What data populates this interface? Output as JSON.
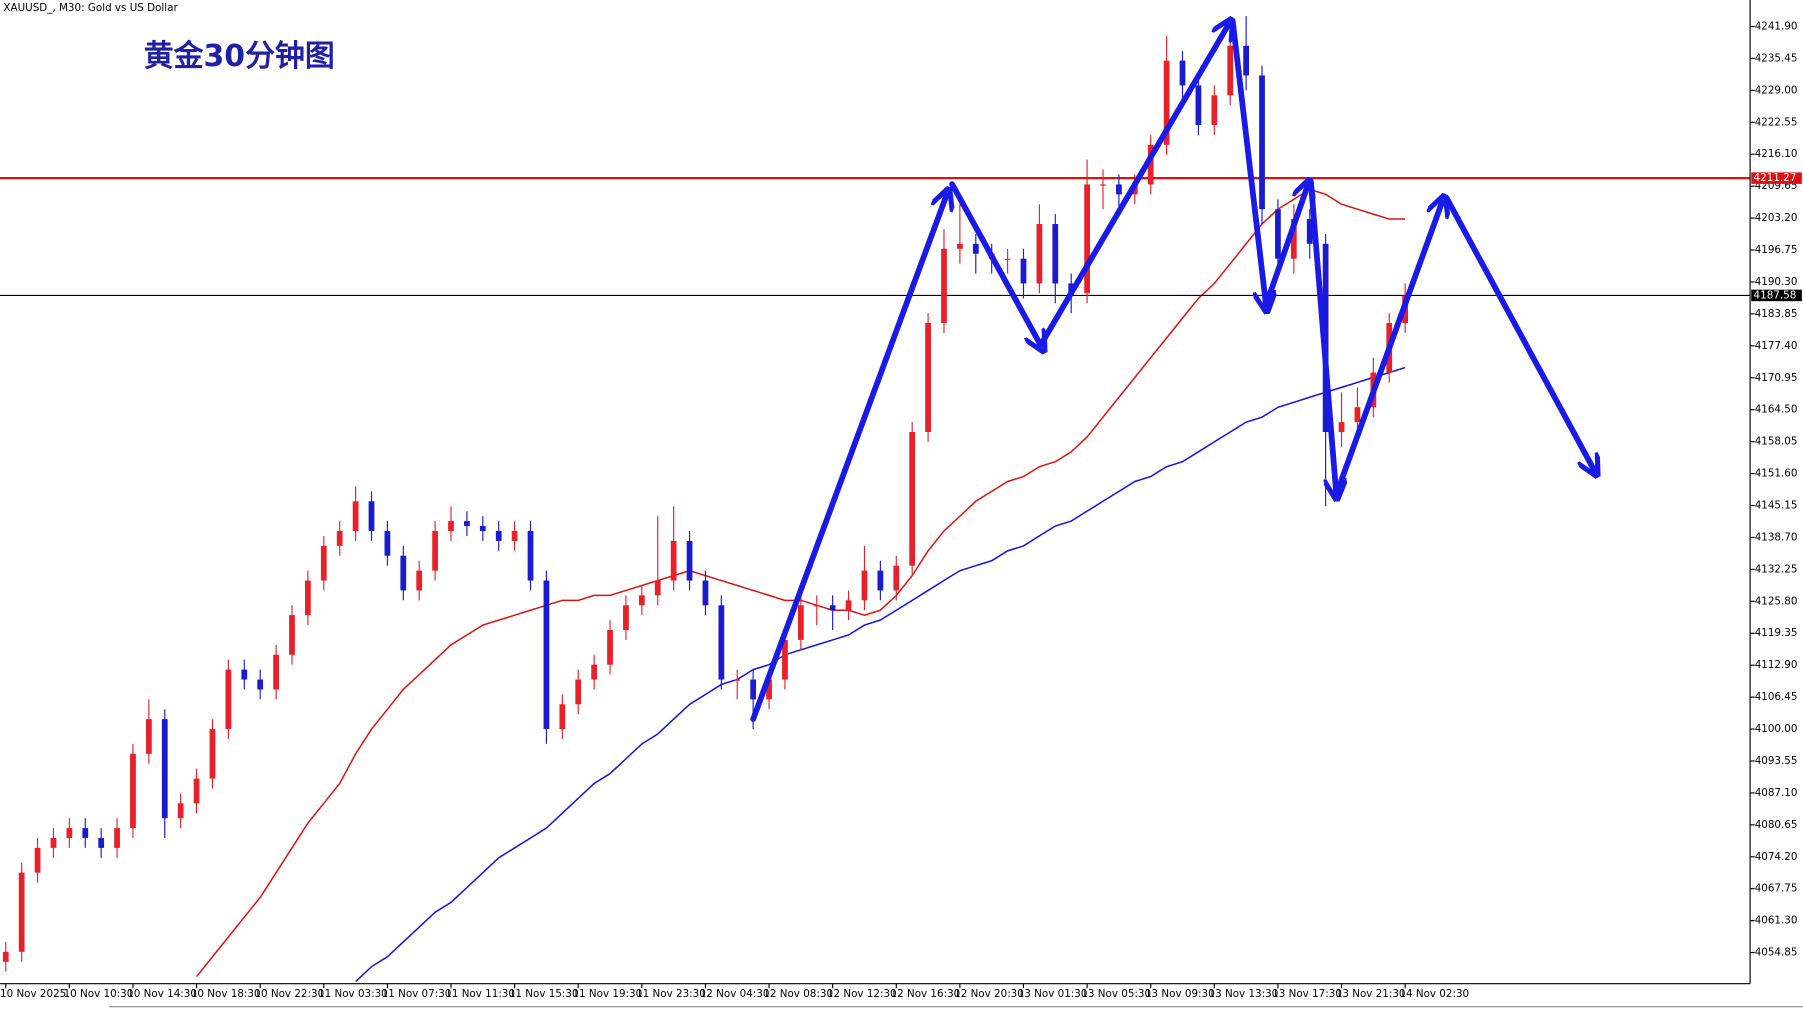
{
  "header": "XAUUSD_, M30:  Gold vs US Dollar",
  "chart_data": {
    "type": "candlestick",
    "title": "黄金30分钟图",
    "up_color": "#e8202a",
    "down_color": "#1a1ad0",
    "categories": [
      "10 Nov 2025",
      null,
      null,
      null,
      "10 Nov 10:30",
      null,
      null,
      null,
      "10 Nov 14:30",
      null,
      null,
      null,
      "10 Nov 18:30",
      null,
      null,
      null,
      "10 Nov 22:30",
      null,
      null,
      null,
      "11 Nov 03:30",
      null,
      null,
      null,
      "11 Nov 07:30",
      null,
      null,
      null,
      "11 Nov 11:30",
      null,
      null,
      null,
      "11 Nov 15:30",
      null,
      null,
      null,
      "11 Nov 19:30",
      null,
      null,
      null,
      "11 Nov 23:30",
      null,
      null,
      null,
      "12 Nov 04:30",
      null,
      null,
      null,
      "12 Nov 08:30",
      null,
      null,
      null,
      "12 Nov 12:30",
      null,
      null,
      null,
      "12 Nov 16:30",
      null,
      null,
      null,
      "12 Nov 20:30",
      null,
      null,
      null,
      "13 Nov 01:30",
      null,
      null,
      null,
      "13 Nov 05:30",
      null,
      null,
      null,
      "13 Nov 09:30",
      null,
      null,
      null,
      "13 Nov 13:30",
      null,
      null,
      null,
      "13 Nov 17:30",
      null,
      null,
      null,
      "13 Nov 21:30",
      null,
      null,
      null,
      "14 Nov 02:30"
    ],
    "open": [
      4053,
      4055,
      4071,
      4076,
      4078,
      4080,
      4078,
      4076,
      4080,
      4095,
      4102,
      4082,
      4085,
      4090,
      4100,
      4112,
      4110,
      4108,
      4115,
      4123,
      4130,
      4137,
      4140,
      4146,
      4140,
      4135,
      4128,
      4132,
      4140,
      4142,
      4141,
      4140,
      4138,
      4140,
      4130,
      4100,
      4105,
      4110,
      4113,
      4120,
      4125,
      4127,
      4130,
      4138,
      4130,
      4125,
      4110,
      4110,
      4106,
      4110,
      4118,
      4125,
      4125,
      4124,
      4126,
      4132,
      4128,
      4133,
      4160,
      4182,
      4197,
      4198,
      4196,
      4195,
      4195,
      4190,
      4202,
      4190,
      4188,
      4210,
      4210,
      4208,
      4210,
      4218,
      4235,
      4230,
      4222,
      4228,
      4238,
      4232,
      4205,
      4195,
      4203,
      4198,
      4160,
      4162,
      4165,
      4172,
      4182
    ],
    "high": [
      4057,
      4073,
      4078,
      4080,
      4082,
      4082,
      4080,
      4082,
      4097,
      4106,
      4104,
      4087,
      4092,
      4102,
      4114,
      4114,
      4112,
      4117,
      4125,
      4132,
      4139,
      4142,
      4149,
      4148,
      4142,
      4137,
      4134,
      4142,
      4145,
      4144,
      4143,
      4142,
      4142,
      4142,
      4132,
      4107,
      4112,
      4115,
      4122,
      4127,
      4129,
      4143,
      4145,
      4140,
      4132,
      4127,
      4112,
      4112,
      4112,
      4120,
      4127,
      4127,
      4127,
      4128,
      4137,
      4134,
      4135,
      4162,
      4184,
      4201,
      4206,
      4200,
      4198,
      4197,
      4197,
      4206,
      4204,
      4192,
      4215,
      4213,
      4212,
      4212,
      4220,
      4240,
      4237,
      4232,
      4230,
      4242,
      4244,
      4234,
      4207,
      4206,
      4205,
      4200,
      4168,
      4169,
      4175,
      4184,
      4190
    ],
    "low": [
      4051,
      4053,
      4069,
      4074,
      4076,
      4076,
      4074,
      4074,
      4078,
      4093,
      4078,
      4080,
      4083,
      4088,
      4098,
      4108,
      4106,
      4106,
      4113,
      4121,
      4128,
      4135,
      4138,
      4138,
      4133,
      4126,
      4126,
      4130,
      4138,
      4139,
      4138,
      4136,
      4136,
      4128,
      4097,
      4098,
      4103,
      4108,
      4111,
      4118,
      4123,
      4125,
      4128,
      4128,
      4123,
      4108,
      4106,
      4100,
      4104,
      4108,
      4116,
      4121,
      4120,
      4122,
      4124,
      4126,
      4126,
      4131,
      4158,
      4180,
      4194,
      4192,
      4192,
      4192,
      4187,
      4188,
      4186,
      4184,
      4186,
      4205,
      4205,
      4206,
      4208,
      4216,
      4227,
      4220,
      4220,
      4226,
      4229,
      4202,
      4192,
      4192,
      4195,
      4145,
      4157,
      4160,
      4163,
      4170,
      4180
    ],
    "close": [
      4055,
      4071,
      4076,
      4078,
      4080,
      4078,
      4076,
      4080,
      4095,
      4102,
      4082,
      4085,
      4090,
      4100,
      4112,
      4110,
      4108,
      4115,
      4123,
      4130,
      4137,
      4140,
      4146,
      4140,
      4135,
      4128,
      4132,
      4140,
      4142,
      4141,
      4140,
      4138,
      4140,
      4130,
      4100,
      4105,
      4110,
      4113,
      4120,
      4125,
      4127,
      4130,
      4138,
      4130,
      4125,
      4110,
      4110,
      4106,
      4110,
      4118,
      4125,
      4125,
      4124,
      4126,
      4132,
      4128,
      4133,
      4160,
      4182,
      4197,
      4198,
      4196,
      4195,
      4195,
      4190,
      4202,
      4190,
      4188,
      4210,
      4210,
      4208,
      4210,
      4218,
      4235,
      4230,
      4222,
      4228,
      4238,
      4232,
      4205,
      4195,
      4203,
      4198,
      4160,
      4162,
      4165,
      4172,
      4182,
      4187.58
    ],
    "series": [
      {
        "color": "#e01010",
        "values": [
          null,
          null,
          null,
          null,
          null,
          null,
          null,
          null,
          null,
          null,
          null,
          null,
          4050,
          4054,
          4058,
          4062,
          4066,
          4071,
          4076,
          4081,
          4085,
          4089,
          4095,
          4100,
          4104,
          4108,
          4111,
          4114,
          4117,
          4119,
          4121,
          4122,
          4123,
          4124,
          4125,
          4126,
          4126,
          4127,
          4127,
          4128,
          4129,
          4130,
          4131,
          4132,
          4131,
          4130,
          4129,
          4128,
          4127,
          4126,
          4126,
          4125,
          4124,
          4124,
          4123,
          4124,
          4127,
          4131,
          4136,
          4140,
          4143,
          4146,
          4148,
          4150,
          4151,
          4153,
          4154,
          4156,
          4159,
          4163,
          4167,
          4171,
          4175,
          4179,
          4183,
          4187,
          4190,
          4194,
          4198,
          4202,
          4205,
          4207,
          4209,
          4208,
          4206,
          4205,
          4204,
          4203,
          4203
        ]
      },
      {
        "color": "#1010e8",
        "values": [
          null,
          null,
          null,
          null,
          null,
          null,
          null,
          null,
          null,
          null,
          null,
          null,
          null,
          null,
          null,
          null,
          null,
          null,
          null,
          null,
          null,
          null,
          4049,
          4052,
          4054,
          4057,
          4060,
          4063,
          4065,
          4068,
          4071,
          4074,
          4076,
          4078,
          4080,
          4083,
          4086,
          4089,
          4091,
          4094,
          4097,
          4099,
          4102,
          4105,
          4107,
          4109,
          4110,
          4112,
          4113,
          4115,
          4116,
          4117,
          4118,
          4119,
          4121,
          4122,
          4124,
          4126,
          4128,
          4130,
          4132,
          4133,
          4134,
          4136,
          4137,
          4139,
          4141,
          4142,
          4144,
          4146,
          4148,
          4150,
          4151,
          4153,
          4154,
          4156,
          4158,
          4160,
          4162,
          4163,
          4165,
          4166,
          4167,
          4168,
          4169,
          4170,
          4171,
          4172,
          4173
        ]
      }
    ],
    "hlines": [
      {
        "value": 4211.27,
        "color": "#e01010"
      },
      {
        "value": 4187.58,
        "color": "#000000"
      }
    ],
    "ylim": [
      4048.57,
      4247.25
    ],
    "yticks": [
      {
        "value": 4241.9,
        "label": "4241.90"
      },
      4235.45,
      {
        "value": 4229,
        "label": "4229.00"
      },
      4222.55,
      {
        "value": 4216.1,
        "label": "4216.10"
      },
      4209.65,
      {
        "value": 4203.2,
        "label": "4203.20"
      },
      4196.75,
      {
        "value": 4190.3,
        "label": "4190.30"
      },
      4183.85,
      {
        "value": 4177.4,
        "label": "4177.40"
      },
      4170.95,
      {
        "value": 4164.5,
        "label": "4164.50"
      },
      4158.05,
      {
        "value": 4151.6,
        "label": "4151.60"
      },
      4145.15,
      {
        "value": 4138.7,
        "label": "4138.70"
      },
      4132.25,
      {
        "value": 4125.8,
        "label": "4125.80"
      },
      4119.35,
      {
        "value": 4112.9,
        "label": "4112.90"
      },
      4106.45,
      {
        "value": 4100,
        "label": "4100.00"
      },
      4093.55,
      {
        "value": 4087.1,
        "label": "4087.10"
      },
      4080.65,
      {
        "value": 4074.2,
        "label": "4074.20"
      },
      4067.75,
      {
        "value": 4061.3,
        "label": "4061.30"
      },
      4054.85
    ]
  }
}
